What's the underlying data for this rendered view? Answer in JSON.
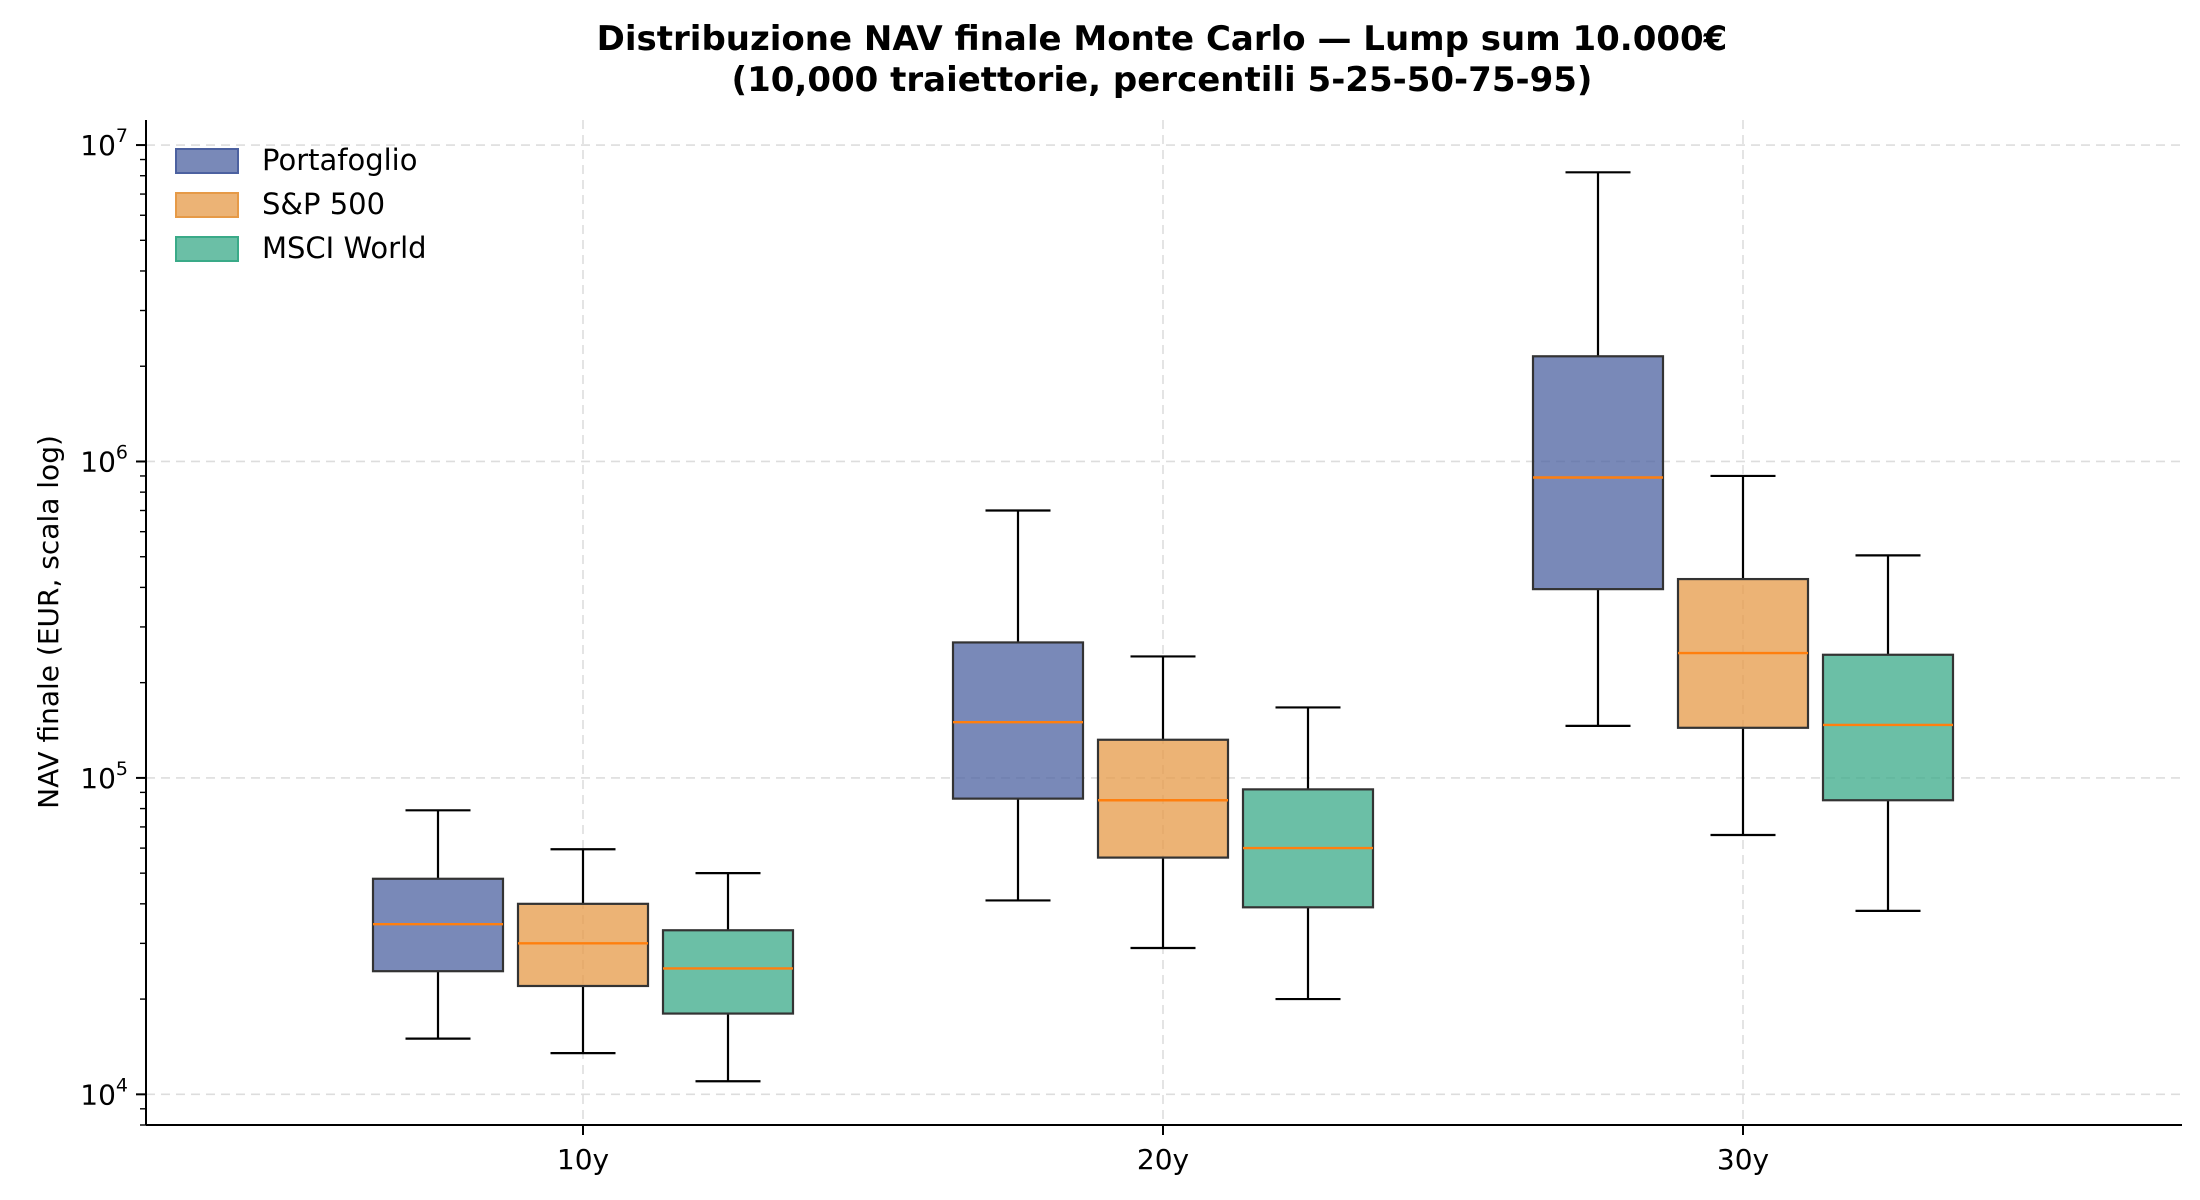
{
  "chart_data": {
    "type": "box",
    "title": "Distribuzione NAV finale Monte Carlo — Lump sum 10.000€",
    "subtitle": "(10,000 traiettorie, percentili 5-25-50-75-95)",
    "xlabel": "",
    "ylabel": "NAV finale (EUR, scala log)",
    "yscale": "log",
    "ylim": [
      8000,
      12000000
    ],
    "yticks": [
      10000,
      100000,
      1000000,
      10000000
    ],
    "ytick_labels": [
      {
        "base": "10",
        "exp": "4"
      },
      {
        "base": "10",
        "exp": "5"
      },
      {
        "base": "10",
        "exp": "6"
      },
      {
        "base": "10",
        "exp": "7"
      }
    ],
    "categories": [
      "10y",
      "20y",
      "30y"
    ],
    "grid": true,
    "legend_position": "top-left",
    "median_color": "#ff7f0e",
    "series": [
      {
        "name": "Portafoglio",
        "color": "#4c61a0",
        "boxes": [
          {
            "p5": 15000,
            "p25": 24500,
            "p50": 34500,
            "p75": 48000,
            "p95": 79000
          },
          {
            "p5": 41000,
            "p25": 86000,
            "p50": 150000,
            "p75": 268000,
            "p95": 700000
          },
          {
            "p5": 146000,
            "p25": 395000,
            "p50": 890000,
            "p75": 2150000,
            "p95": 8200000
          }
        ]
      },
      {
        "name": "S&P 500",
        "color": "#e69a47",
        "boxes": [
          {
            "p5": 13500,
            "p25": 22000,
            "p50": 30000,
            "p75": 40000,
            "p95": 59500
          },
          {
            "p5": 29000,
            "p25": 56000,
            "p50": 85000,
            "p75": 132000,
            "p95": 242000
          },
          {
            "p5": 66000,
            "p25": 144000,
            "p50": 248000,
            "p75": 425000,
            "p95": 900000
          }
        ]
      },
      {
        "name": "MSCI World",
        "color": "#3aaa88",
        "boxes": [
          {
            "p5": 11000,
            "p25": 18000,
            "p50": 25000,
            "p75": 33000,
            "p95": 50000
          },
          {
            "p5": 20000,
            "p25": 39000,
            "p50": 60000,
            "p75": 92000,
            "p95": 167000
          },
          {
            "p5": 38000,
            "p25": 85000,
            "p50": 147000,
            "p75": 245000,
            "p95": 505000
          }
        ]
      }
    ]
  }
}
